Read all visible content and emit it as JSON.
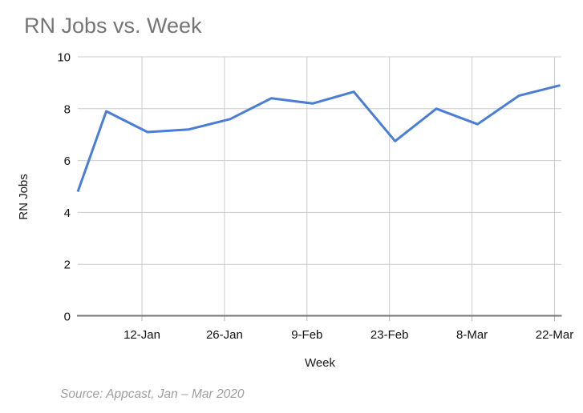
{
  "chart_data": {
    "type": "line",
    "title": "RN Jobs vs. Week",
    "xlabel": "Week",
    "ylabel": "RN Jobs",
    "ylim": [
      0,
      10
    ],
    "y_ticks": [
      0,
      2,
      4,
      6,
      8,
      10
    ],
    "x_tick_labels": [
      "12-Jan",
      "26-Jan",
      "9-Feb",
      "23-Feb",
      "8-Mar",
      "22-Mar"
    ],
    "categories": [
      "5-Jan",
      "12-Jan",
      "19-Jan",
      "26-Jan",
      "2-Feb",
      "9-Feb",
      "16-Feb",
      "23-Feb",
      "1-Mar",
      "8-Mar",
      "15-Mar",
      "22-Mar"
    ],
    "series": [
      {
        "name": "RN Jobs",
        "color": "#4a7dd6",
        "edge_start_value": 4.8,
        "values": [
          7.9,
          7.1,
          7.2,
          7.6,
          8.4,
          8.2,
          8.65,
          6.75,
          8.0,
          7.4,
          8.5,
          8.9
        ]
      }
    ],
    "grid": true,
    "legend": false
  },
  "source_note": "Source: Appcast, Jan – Mar 2020"
}
